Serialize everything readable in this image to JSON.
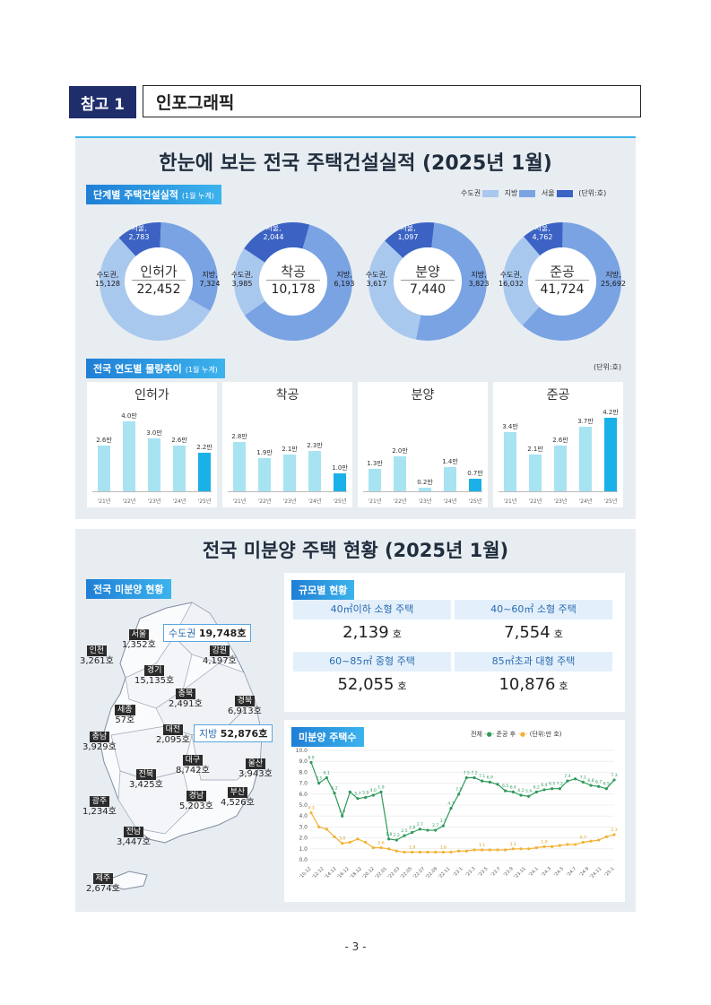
{
  "header": {
    "badge": "참고 1",
    "title": "인포그래픽"
  },
  "section1": {
    "title": "한눈에 보는 전국 주택건설실적  (2025년 1월)",
    "donut_tag": "단계별 주택건설실적",
    "donut_tag_note": "(1월 누계)",
    "legend": [
      {
        "label": "수도권",
        "color": "#a9c8ee"
      },
      {
        "label": "지방",
        "color": "#7aa3e3"
      },
      {
        "label": "서울",
        "color": "#3c63c4"
      }
    ],
    "unit": "(단위:호)",
    "donuts": [
      {
        "name": "인허가",
        "total": "22,452",
        "seoul_label": "서울,",
        "seoul": "2,783",
        "metro_label": "수도권,",
        "metro": "15,128",
        "local_label": "지방,",
        "local": "7,324",
        "values": {
          "seoul": 2783,
          "metro": 15128,
          "local": 7324
        }
      },
      {
        "name": "착공",
        "total": "10,178",
        "seoul_label": "서울,",
        "seoul": "2,044",
        "metro_label": "수도권,",
        "metro": "3,985",
        "local_label": "지방,",
        "local": "6,193",
        "values": {
          "seoul": 2044,
          "metro": 3985,
          "local": 6193
        }
      },
      {
        "name": "분양",
        "total": "7,440",
        "seoul_label": "서울,",
        "seoul": "1,097",
        "metro_label": "수도권,",
        "metro": "3,617",
        "local_label": "지방,",
        "local": "3,823",
        "values": {
          "seoul": 1097,
          "metro": 3617,
          "local": 3823
        }
      },
      {
        "name": "준공",
        "total": "41,724",
        "seoul_label": "서울,",
        "seoul": "4,762",
        "metro_label": "수도권,",
        "metro": "16,032",
        "local_label": "지방,",
        "local": "25,692",
        "values": {
          "seoul": 4762,
          "metro": 16032,
          "local": 25692
        }
      }
    ],
    "bar_tag": "전국 연도별 물량추이",
    "bar_tag_note": "(1월 누계)",
    "bar_unit": "(단위:호)",
    "bar_years": [
      "'21년",
      "'22년",
      "'23년",
      "'24년",
      "'25년"
    ],
    "bars": [
      {
        "name": "인허가",
        "values": [
          2.6,
          4.0,
          3.0,
          2.6,
          2.2
        ],
        "labels": [
          "2.6만",
          "4.0만",
          "3.0만",
          "2.6만",
          "2.2만"
        ]
      },
      {
        "name": "착공",
        "values": [
          2.8,
          1.9,
          2.1,
          2.3,
          1.0
        ],
        "labels": [
          "2.8만",
          "1.9만",
          "2.1만",
          "2.3만",
          "1.0만"
        ]
      },
      {
        "name": "분양",
        "values": [
          1.3,
          2.0,
          0.2,
          1.4,
          0.7
        ],
        "labels": [
          "1.3만",
          "2.0만",
          "0.2만",
          "1.4만",
          "0.7만"
        ]
      },
      {
        "name": "준공",
        "values": [
          3.4,
          2.1,
          2.6,
          3.7,
          4.2
        ],
        "labels": [
          "3.4만",
          "2.1만",
          "2.6만",
          "3.7만",
          "4.2만"
        ]
      }
    ]
  },
  "section2": {
    "title": "전국 미분양 주택 현황  (2025년 1월)",
    "map_tag": "전국 미분양 현황",
    "metro_box": {
      "label": "수도권",
      "value": "19,748호"
    },
    "local_box": {
      "label": "지방",
      "value": "52,876호"
    },
    "regions": [
      {
        "name": "서울",
        "value": "1,352호"
      },
      {
        "name": "인천",
        "value": "3,261호"
      },
      {
        "name": "강원",
        "value": "4,197호"
      },
      {
        "name": "경기",
        "value": "15,135호"
      },
      {
        "name": "충북",
        "value": "2,491호"
      },
      {
        "name": "경북",
        "value": "6,913호"
      },
      {
        "name": "세종",
        "value": "57호"
      },
      {
        "name": "대전",
        "value": "2,095호"
      },
      {
        "name": "충남",
        "value": "3,929호"
      },
      {
        "name": "대구",
        "value": "8,742호"
      },
      {
        "name": "울산",
        "value": "3,943호"
      },
      {
        "name": "전북",
        "value": "3,425호"
      },
      {
        "name": "광주",
        "value": "1,234호"
      },
      {
        "name": "경남",
        "value": "5,203호"
      },
      {
        "name": "부산",
        "value": "4,526호"
      },
      {
        "name": "전남",
        "value": "3,447호"
      },
      {
        "name": "제주",
        "value": "2,674호"
      }
    ],
    "size_tag": "규모별 현황",
    "sizes": [
      {
        "label": "40㎡이하 소형 주택",
        "value": "2,139",
        "unit": "호"
      },
      {
        "label": "40~60㎡ 소형 주택",
        "value": "7,554",
        "unit": "호"
      },
      {
        "label": "60~85㎡ 중형 주택",
        "value": "52,055",
        "unit": "호"
      },
      {
        "label": "85㎡초과 대형 주택",
        "value": "10,876",
        "unit": "호"
      }
    ],
    "trend_tag": "미분양 주택수",
    "trend_legend": {
      "total": "전체",
      "after": "준공 후",
      "unit": "(단위:만 호)"
    }
  },
  "chart_data": {
    "type": "line",
    "title": "미분양 주택수",
    "ylabel": "(단위:만 호)",
    "ylim": [
      0,
      10
    ],
    "yticks": [
      "10.0",
      "9.0",
      "8.0",
      "7.0",
      "6.0",
      "5.0",
      "4.0",
      "3.0",
      "2.0",
      "1.0",
      "0.0"
    ],
    "xticks": [
      "'10.12",
      "'12.12",
      "'14.12",
      "'16.12",
      "'18.12",
      "'20.12",
      "'22.01",
      "'22.03",
      "'22.05",
      "'22.07",
      "'22.09",
      "'22.11",
      "'23.1",
      "'23.3",
      "'23.5",
      "'23.7",
      "'23.9",
      "'23.11",
      "'24.1",
      "'24.3",
      "'24.5",
      "'24.7",
      "'24.9",
      "'24.11",
      "'25.1"
    ],
    "series": [
      {
        "name": "전체",
        "color": "#2f9a5a",
        "values": [
          8.9,
          7.0,
          7.5,
          6.1,
          4.0,
          6.2,
          5.6,
          5.7,
          5.9,
          6.2,
          1.9,
          1.8,
          2.2,
          2.5,
          2.8,
          2.7,
          2.7,
          3.1,
          4.7,
          6.0,
          7.5,
          7.5,
          7.2,
          7.1,
          6.9,
          6.3,
          6.2,
          5.9,
          5.8,
          6.2,
          6.4,
          6.5,
          6.5,
          7.2,
          7.4,
          7.1,
          6.8,
          6.7,
          6.5,
          7.3
        ]
      },
      {
        "name": "준공 후",
        "color": "#f2b233",
        "values": [
          4.3,
          3.0,
          2.8,
          2.1,
          1.5,
          1.6,
          1.9,
          1.6,
          1.1,
          1.1,
          1.0,
          0.8,
          0.7,
          0.7,
          0.7,
          0.7,
          0.7,
          0.7,
          0.7,
          0.8,
          0.8,
          0.9,
          0.9,
          0.9,
          0.9,
          0.9,
          1.0,
          1.0,
          1.0,
          1.1,
          1.2,
          1.2,
          1.3,
          1.4,
          1.4,
          1.6,
          1.7,
          1.8,
          2.1,
          2.3
        ]
      }
    ],
    "point_labels_total": [
      "8.9",
      "7.5",
      "6.1",
      "6.2",
      "5.6",
      "5.7",
      "5.9",
      "4.0",
      "1.9",
      "1.8",
      "2.2",
      "2.5",
      "2.8",
      "2.7",
      "2.7",
      "3.1",
      "4.7",
      "7.5",
      "7.5",
      "7.2",
      "7.1",
      "6.9",
      "6.5",
      "6.4",
      "6.2",
      "5.9",
      "6.2",
      "6.4",
      "6.5",
      "7.2",
      "7.4",
      "7.1",
      "6.8",
      "6.7",
      "6.5",
      "7.3"
    ],
    "point_labels_after": [
      "4.3",
      "3.0",
      "1.6",
      "1.9",
      "1.6",
      "1.1",
      "1.1",
      "1.0",
      "0.7",
      "2.3"
    ]
  },
  "page_number": "- 3 -"
}
